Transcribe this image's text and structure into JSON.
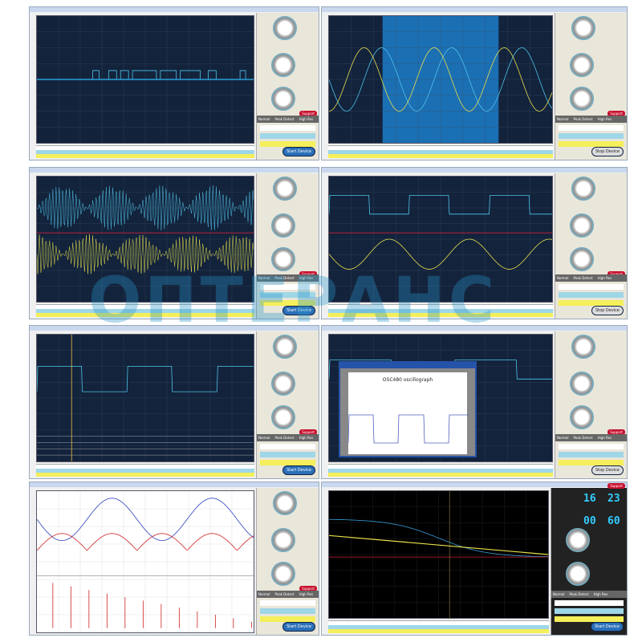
{
  "buttons": {
    "start": "Start Device",
    "stop": "Stop Device",
    "support": "Support"
  },
  "acq_modes": [
    "Normal",
    "Peak Detect",
    "High Res"
  ],
  "print_preview": {
    "title": "OSC480 oscillograph"
  },
  "readouts": {
    "a1": "16",
    "a2": "23",
    "b1": "00",
    "b2": "60"
  },
  "watermark_logo": "ОПТЕРАНС",
  "colors": {
    "plot_bg": "#13233c",
    "ch1": "#4fc3e8",
    "ch2": "#e8e04a",
    "marker": "#d0203a",
    "highlight": "#1b6fb3"
  }
}
